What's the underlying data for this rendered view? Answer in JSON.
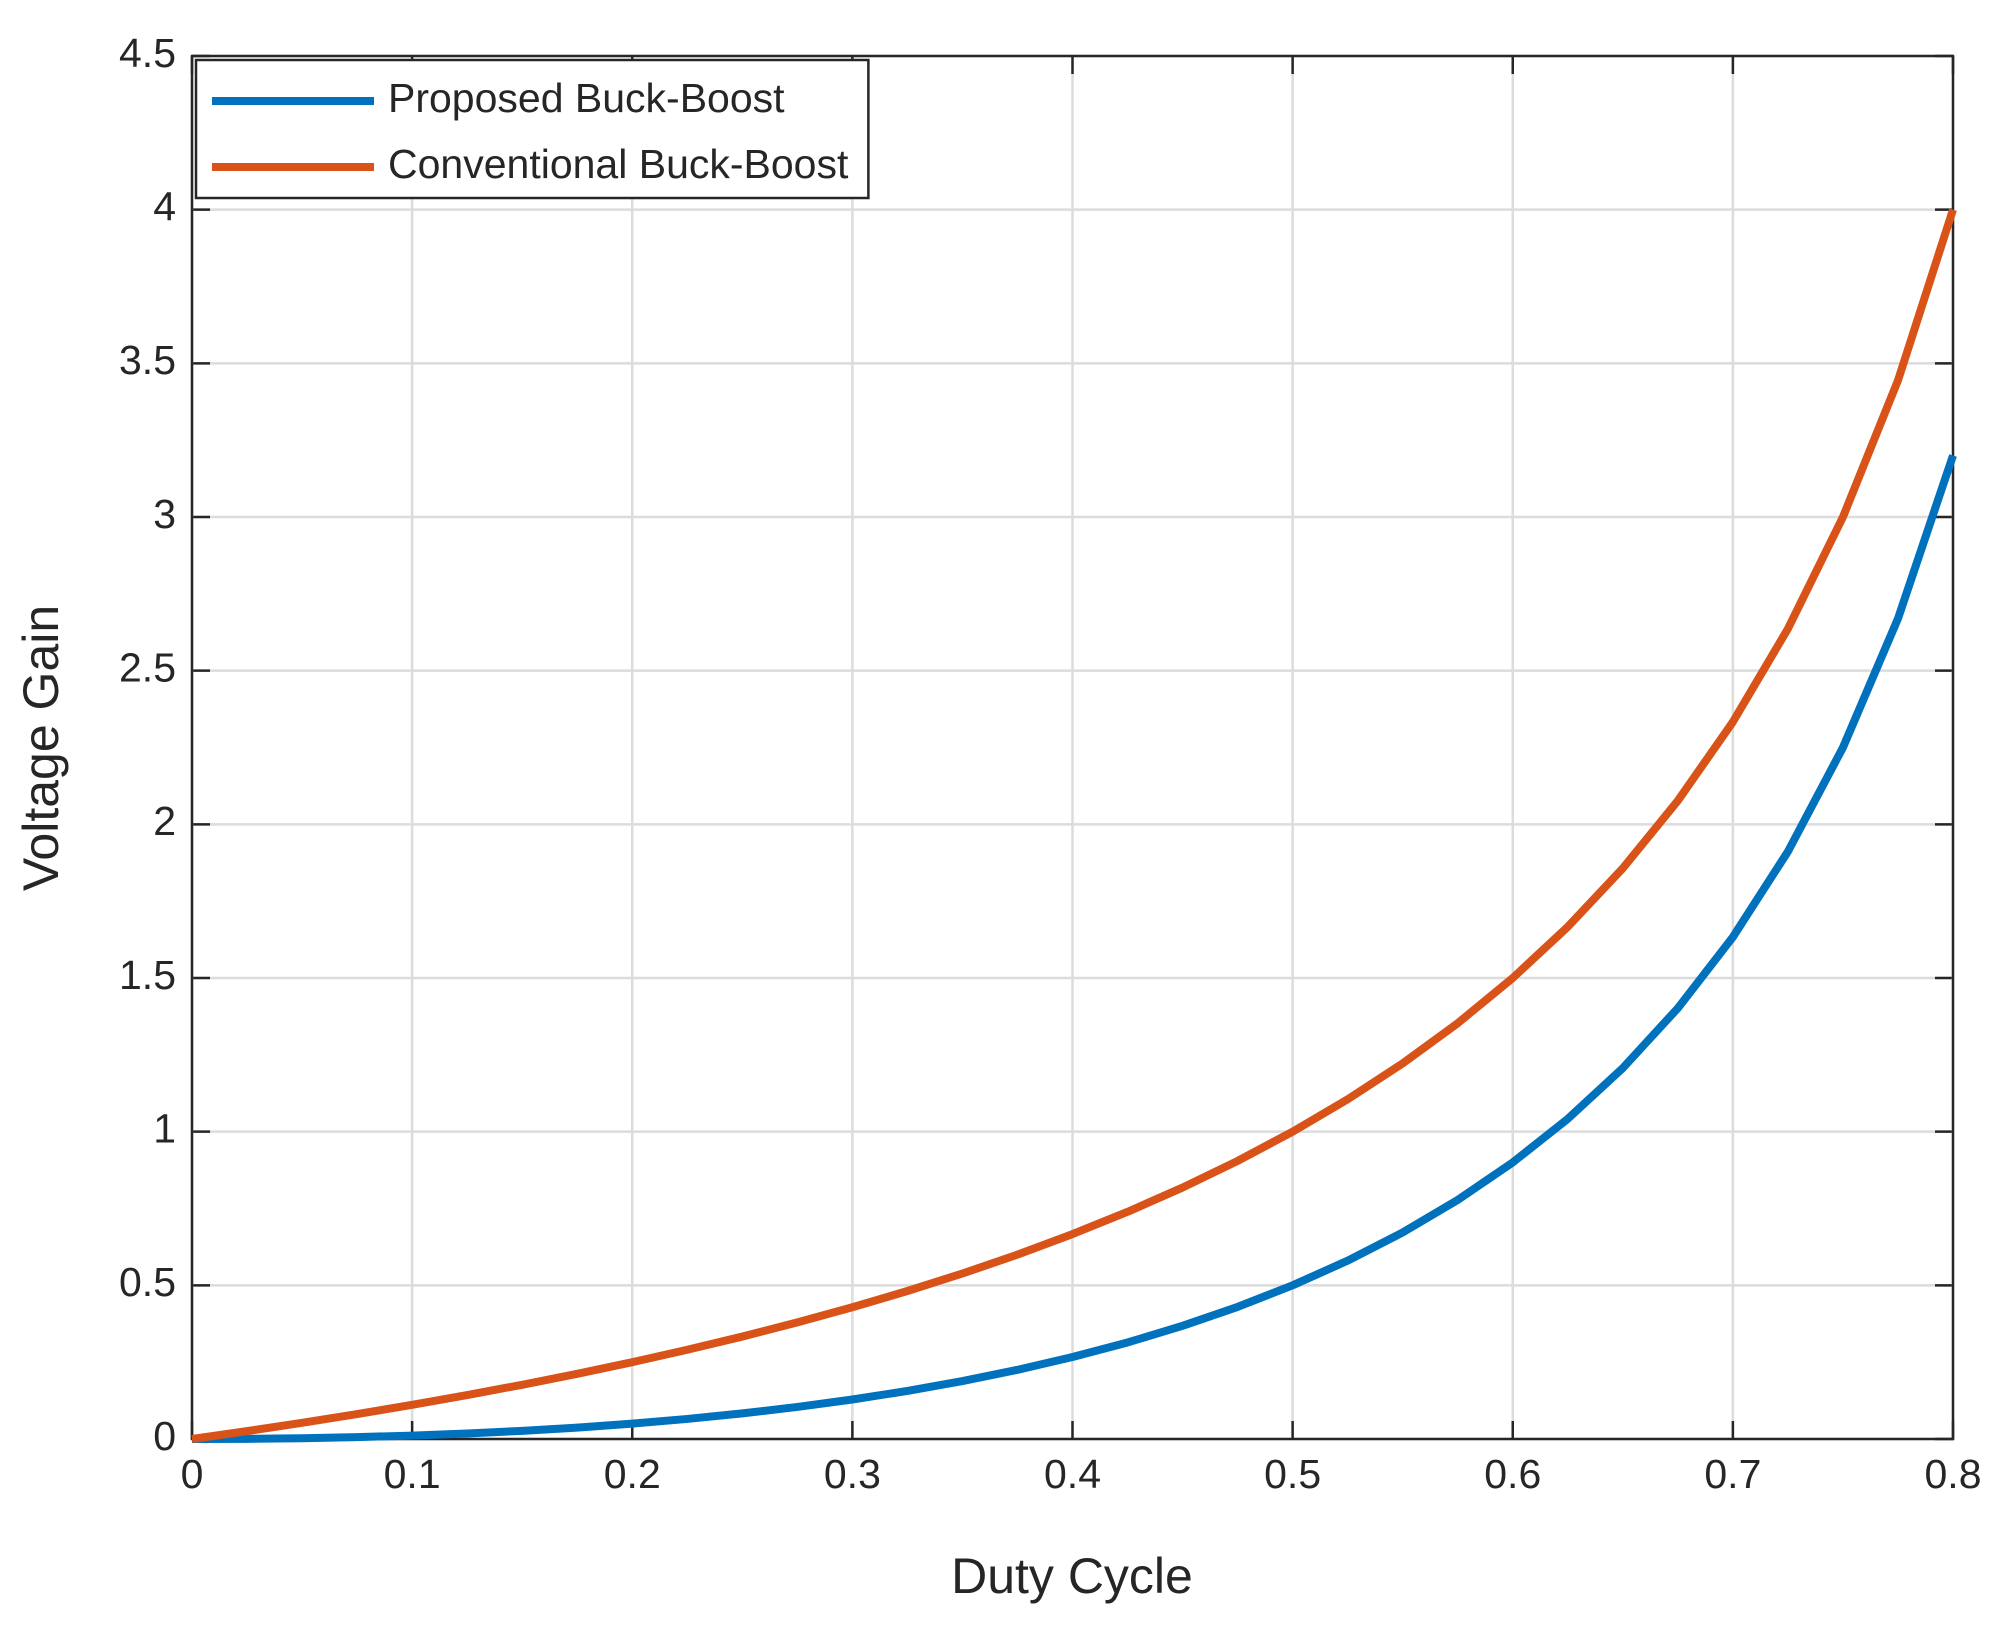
{
  "chart_data": {
    "type": "line",
    "x_label": "Duty Cycle",
    "y_label": "Voltage Gain",
    "x": [
      0,
      0.025,
      0.05,
      0.075,
      0.1,
      0.125,
      0.15,
      0.175,
      0.2,
      0.225,
      0.25,
      0.275,
      0.3,
      0.325,
      0.35,
      0.375,
      0.4,
      0.425,
      0.45,
      0.475,
      0.5,
      0.525,
      0.55,
      0.575,
      0.6,
      0.625,
      0.65,
      0.675,
      0.7,
      0.725,
      0.75,
      0.775,
      0.8
    ],
    "series": [
      {
        "name": "Proposed Buck-Boost",
        "color": "#0072bd",
        "values": [
          0,
          0.0006,
          0.0026,
          0.0061,
          0.0111,
          0.0179,
          0.0265,
          0.0371,
          0.05,
          0.0653,
          0.0833,
          0.1043,
          0.1286,
          0.1565,
          0.1885,
          0.225,
          0.2667,
          0.3141,
          0.3682,
          0.4298,
          0.5,
          0.5803,
          0.6722,
          0.7779,
          0.9,
          1.0417,
          1.2071,
          1.4019,
          1.6333,
          1.9114,
          2.25,
          2.6694,
          3.2
        ]
      },
      {
        "name": "Conventional Buck-Boost",
        "color": "#d95319",
        "values": [
          0,
          0.0256,
          0.0526,
          0.0811,
          0.1111,
          0.1429,
          0.1765,
          0.2121,
          0.25,
          0.2903,
          0.3333,
          0.3793,
          0.4286,
          0.4815,
          0.5385,
          0.6,
          0.6667,
          0.7391,
          0.8182,
          0.9048,
          1,
          1.1053,
          1.2222,
          1.3529,
          1.5,
          1.6667,
          1.8571,
          2.0769,
          2.3333,
          2.6364,
          3,
          3.4444,
          4
        ]
      }
    ],
    "xlim": [
      0,
      0.8
    ],
    "xticks": [
      0,
      0.1,
      0.2,
      0.3,
      0.4,
      0.5,
      0.6,
      0.7,
      0.8
    ],
    "ylim": [
      0,
      4.5
    ],
    "yticks": [
      0,
      0.5,
      1,
      1.5,
      2,
      2.5,
      3,
      3.5,
      4,
      4.5
    ],
    "grid": true,
    "legend": "upper-left"
  }
}
